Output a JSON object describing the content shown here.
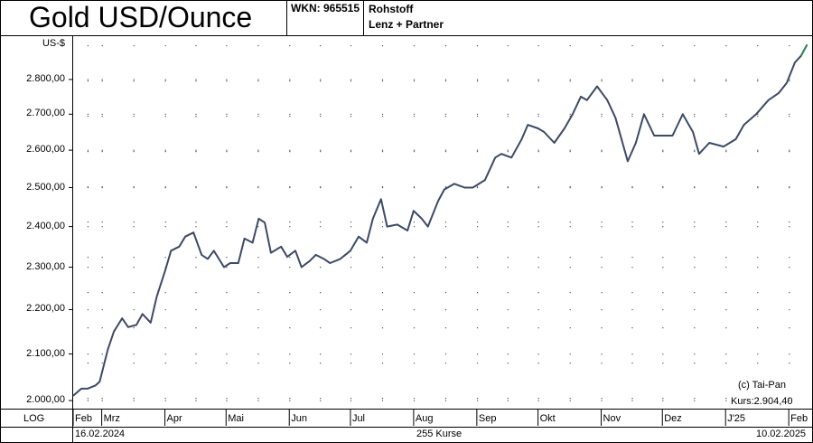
{
  "header": {
    "title": "Gold USD/Ounce",
    "wkn": "WKN: 965515",
    "category": "Rohstoff",
    "provider": "Lenz + Partner"
  },
  "footer": {
    "scale": "LOG",
    "start_date": "16.02.2024",
    "count": "255 Kurse",
    "end_date": "10.02.2025"
  },
  "annotations": {
    "copyright": "(c) Tai-Pan",
    "last_price": "Kurs:2.904,40"
  },
  "colors": {
    "line": "#3d4a66",
    "line_end": "#2e8b57",
    "grid": "#555555"
  },
  "chart_data": {
    "type": "line",
    "yscale": "log",
    "ylabel": "US-$",
    "ylim": [
      1985,
      2930
    ],
    "yticks": [
      2000,
      2100,
      2200,
      2300,
      2400,
      2500,
      2600,
      2700,
      2800
    ],
    "ytick_labels": [
      "2.000,00",
      "2.100,00",
      "2.200,00",
      "2.300,00",
      "2.400,00",
      "2.500,00",
      "2.600,00",
      "2.700,00",
      "2.800,00"
    ],
    "grid": true,
    "xlim": [
      "2024-02-16",
      "2025-02-12"
    ],
    "month_ticks": [
      {
        "label": "Feb",
        "date": "2024-02-16"
      },
      {
        "label": "Mrz",
        "date": "2024-03-01"
      },
      {
        "label": "Apr",
        "date": "2024-04-01"
      },
      {
        "label": "Mai",
        "date": "2024-05-01"
      },
      {
        "label": "Jun",
        "date": "2024-06-01"
      },
      {
        "label": "Jul",
        "date": "2024-07-01"
      },
      {
        "label": "Aug",
        "date": "2024-08-01"
      },
      {
        "label": "Sep",
        "date": "2024-09-01"
      },
      {
        "label": "Okt",
        "date": "2024-10-01"
      },
      {
        "label": "Nov",
        "date": "2024-11-01"
      },
      {
        "label": "Dez",
        "date": "2024-12-01"
      },
      {
        "label": "J'25",
        "date": "2025-01-01"
      },
      {
        "label": "Feb",
        "date": "2025-02-01"
      }
    ],
    "series": [
      {
        "x": [
          "2024-02-16",
          "2024-02-20",
          "2024-02-23",
          "2024-02-27",
          "2024-02-29",
          "2024-03-04",
          "2024-03-07",
          "2024-03-11",
          "2024-03-14",
          "2024-03-18",
          "2024-03-21",
          "2024-03-25",
          "2024-03-28",
          "2024-04-01",
          "2024-04-04",
          "2024-04-08",
          "2024-04-11",
          "2024-04-15",
          "2024-04-19",
          "2024-04-22",
          "2024-04-25",
          "2024-04-30",
          "2024-05-03",
          "2024-05-07",
          "2024-05-10",
          "2024-05-14",
          "2024-05-17",
          "2024-05-20",
          "2024-05-23",
          "2024-05-28",
          "2024-05-31",
          "2024-06-04",
          "2024-06-07",
          "2024-06-11",
          "2024-06-14",
          "2024-06-18",
          "2024-06-21",
          "2024-06-26",
          "2024-07-01",
          "2024-07-05",
          "2024-07-09",
          "2024-07-12",
          "2024-07-16",
          "2024-07-19",
          "2024-07-24",
          "2024-07-29",
          "2024-08-01",
          "2024-08-05",
          "2024-08-08",
          "2024-08-13",
          "2024-08-16",
          "2024-08-21",
          "2024-08-26",
          "2024-08-30",
          "2024-09-05",
          "2024-09-10",
          "2024-09-13",
          "2024-09-18",
          "2024-09-23",
          "2024-09-26",
          "2024-10-01",
          "2024-10-04",
          "2024-10-09",
          "2024-10-14",
          "2024-10-18",
          "2024-10-22",
          "2024-10-25",
          "2024-10-30",
          "2024-11-04",
          "2024-11-08",
          "2024-11-14",
          "2024-11-18",
          "2024-11-22",
          "2024-11-27",
          "2024-12-02",
          "2024-12-06",
          "2024-12-11",
          "2024-12-16",
          "2024-12-19",
          "2024-12-24",
          "2024-12-31",
          "2025-01-06",
          "2025-01-10",
          "2025-01-16",
          "2025-01-22",
          "2025-01-27",
          "2025-01-31",
          "2025-02-04",
          "2025-02-07",
          "2025-02-10"
        ],
        "y": [
          2010,
          2025,
          2025,
          2032,
          2040,
          2110,
          2150,
          2180,
          2160,
          2165,
          2190,
          2170,
          2230,
          2290,
          2340,
          2350,
          2375,
          2385,
          2330,
          2320,
          2340,
          2300,
          2310,
          2310,
          2370,
          2360,
          2420,
          2410,
          2335,
          2350,
          2325,
          2340,
          2300,
          2315,
          2330,
          2320,
          2310,
          2320,
          2340,
          2375,
          2360,
          2420,
          2470,
          2400,
          2405,
          2390,
          2440,
          2420,
          2400,
          2465,
          2495,
          2510,
          2500,
          2500,
          2520,
          2580,
          2590,
          2580,
          2630,
          2670,
          2660,
          2650,
          2620,
          2660,
          2700,
          2750,
          2740,
          2780,
          2740,
          2690,
          2570,
          2620,
          2700,
          2640,
          2640,
          2640,
          2700,
          2650,
          2590,
          2620,
          2610,
          2630,
          2670,
          2700,
          2740,
          2760,
          2790,
          2850,
          2870,
          2904.4
        ]
      }
    ]
  }
}
